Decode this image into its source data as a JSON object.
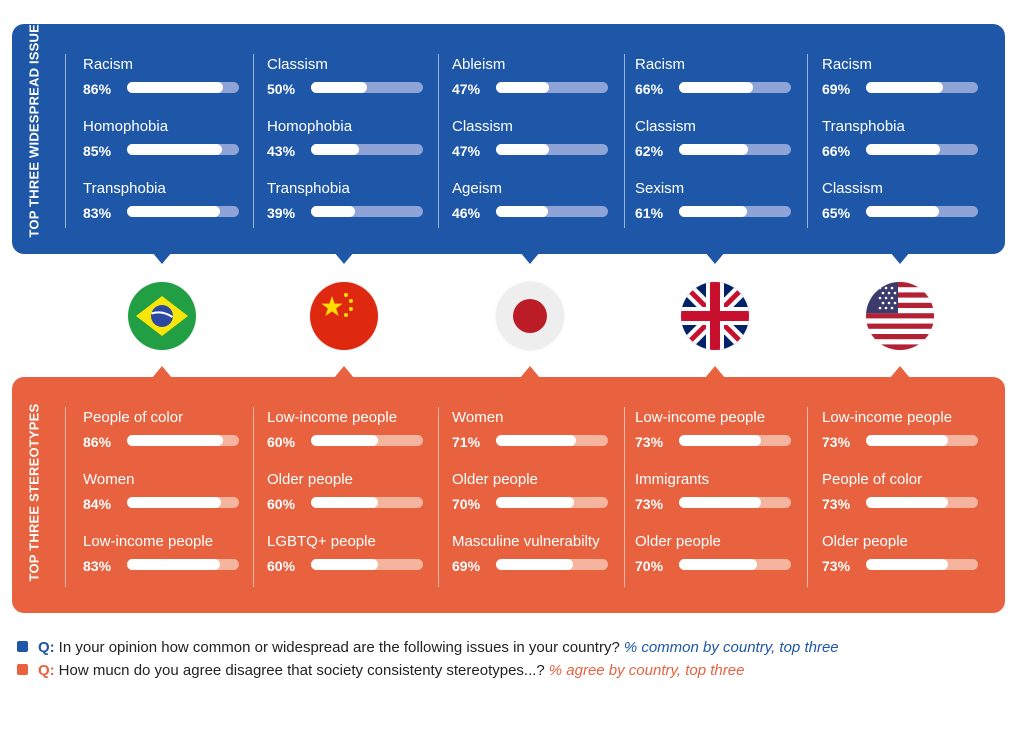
{
  "colors": {
    "blue": "#1f57a8",
    "orange": "#e8623f",
    "text": "#222222"
  },
  "countries": [
    {
      "name": "Brazil",
      "flag_icon": "brazil-flag-icon"
    },
    {
      "name": "China",
      "flag_icon": "china-flag-icon"
    },
    {
      "name": "Japan",
      "flag_icon": "japan-flag-icon"
    },
    {
      "name": "United Kingdom",
      "flag_icon": "uk-flag-icon"
    },
    {
      "name": "United States",
      "flag_icon": "usa-flag-icon"
    }
  ],
  "chart_data": [
    {
      "type": "bar",
      "title": "TOP THREE WIDESPREAD ISSUES",
      "unit": "%",
      "xlim": [
        0,
        100
      ],
      "groups": [
        {
          "items": [
            {
              "label": "Racism",
              "value": 86,
              "value_label": "86%"
            },
            {
              "label": "Homophobia",
              "value": 85,
              "value_label": "85%"
            },
            {
              "label": "Transphobia",
              "value": 83,
              "value_label": "83%"
            }
          ]
        },
        {
          "items": [
            {
              "label": "Classism",
              "value": 50,
              "value_label": "50%"
            },
            {
              "label": "Homophobia",
              "value": 43,
              "value_label": "43%"
            },
            {
              "label": "Transphobia",
              "value": 39,
              "value_label": "39%"
            }
          ]
        },
        {
          "items": [
            {
              "label": "Ableism",
              "value": 47,
              "value_label": "47%"
            },
            {
              "label": "Classism",
              "value": 47,
              "value_label": "47%"
            },
            {
              "label": "Ageism",
              "value": 46,
              "value_label": "46%"
            }
          ]
        },
        {
          "items": [
            {
              "label": "Racism",
              "value": 66,
              "value_label": "66%"
            },
            {
              "label": "Classism",
              "value": 62,
              "value_label": "62%"
            },
            {
              "label": "Sexism",
              "value": 61,
              "value_label": "61%"
            }
          ]
        },
        {
          "items": [
            {
              "label": "Racism",
              "value": 69,
              "value_label": "69%"
            },
            {
              "label": "Transphobia",
              "value": 66,
              "value_label": "66%"
            },
            {
              "label": "Classism",
              "value": 65,
              "value_label": "65%"
            }
          ]
        }
      ]
    },
    {
      "type": "bar",
      "title": "TOP THREE STEREOTYPES",
      "unit": "%",
      "xlim": [
        0,
        100
      ],
      "groups": [
        {
          "items": [
            {
              "label": "People of color",
              "value": 86,
              "value_label": "86%"
            },
            {
              "label": "Women",
              "value": 84,
              "value_label": "84%"
            },
            {
              "label": "Low-income people",
              "value": 83,
              "value_label": "83%"
            }
          ]
        },
        {
          "items": [
            {
              "label": "Low-income people",
              "value": 60,
              "value_label": "60%"
            },
            {
              "label": "Older people",
              "value": 60,
              "value_label": "60%"
            },
            {
              "label": "LGBTQ+ people",
              "value": 60,
              "value_label": "60%"
            }
          ]
        },
        {
          "items": [
            {
              "label": "Women",
              "value": 71,
              "value_label": "71%"
            },
            {
              "label": "Older people",
              "value": 70,
              "value_label": "70%"
            },
            {
              "label": "Masculine vulnerabilty",
              "value": 69,
              "value_label": "69%"
            }
          ]
        },
        {
          "items": [
            {
              "label": "Low-income people",
              "value": 73,
              "value_label": "73%"
            },
            {
              "label": "Immigrants",
              "value": 73,
              "value_label": "73%"
            },
            {
              "label": "Older people",
              "value": 70,
              "value_label": "70%"
            }
          ]
        },
        {
          "items": [
            {
              "label": "Low-income people",
              "value": 73,
              "value_label": "73%"
            },
            {
              "label": "People of color",
              "value": 73,
              "value_label": "73%"
            },
            {
              "label": "Older people",
              "value": 73,
              "value_label": "73%"
            }
          ]
        }
      ]
    }
  ],
  "legend": [
    {
      "q": "Q:",
      "text": "In your opinion how common or widespread are the following issues in your country?",
      "note": "% common by country, top three",
      "color": "#1f57a8"
    },
    {
      "q": "Q:",
      "text": "How mucn do you agree disagree that society consistenty stereotypes...?",
      "note": "% agree by country, top three",
      "color": "#e8623f"
    }
  ]
}
